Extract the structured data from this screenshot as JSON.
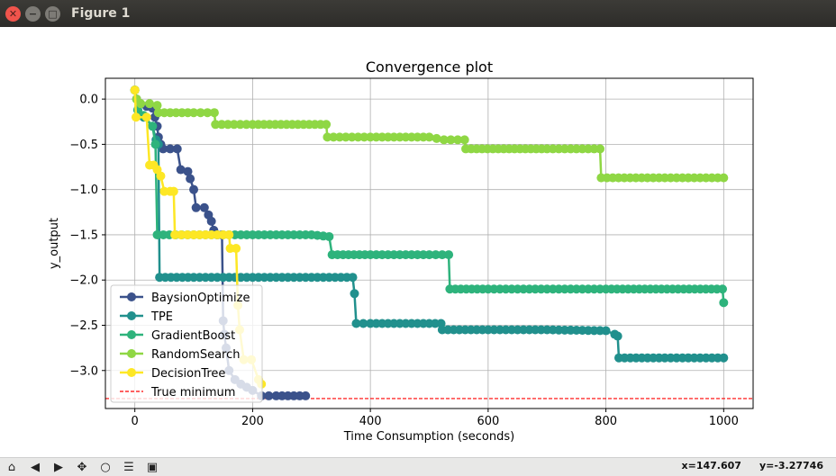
{
  "window": {
    "title": "Figure 1"
  },
  "status": {
    "x": "x=147.607",
    "y": "y=-3.27746"
  },
  "toolbar": {
    "tools": [
      {
        "name": "home-icon",
        "glyph": "⌂"
      },
      {
        "name": "back-icon",
        "glyph": "◀"
      },
      {
        "name": "forward-icon",
        "glyph": "▶"
      },
      {
        "name": "pan-icon",
        "glyph": "✥"
      },
      {
        "name": "zoom-icon",
        "glyph": "○"
      },
      {
        "name": "subplots-icon",
        "glyph": "☰"
      },
      {
        "name": "save-icon",
        "glyph": "▣"
      }
    ]
  },
  "chart_data": {
    "type": "line",
    "title": "Convergence plot",
    "xlabel": "Time Consumption (seconds)",
    "ylabel": "y_output",
    "xlim": [
      -50,
      1050
    ],
    "ylim": [
      -3.42,
      0.23
    ],
    "xticks": [
      0,
      200,
      400,
      600,
      800,
      1000
    ],
    "yticks": [
      0.0,
      -0.5,
      -1.0,
      -1.5,
      -2.0,
      -2.5,
      -3.0
    ],
    "grid": true,
    "legend_position": "lower-left",
    "true_minimum": {
      "label": "True minimum",
      "value": -3.31,
      "color": "#ff0000"
    },
    "series": [
      {
        "name": "BaysionOptimize",
        "color": "#3b528b",
        "points": [
          [
            0,
            0.1
          ],
          [
            3,
            0.0
          ],
          [
            8,
            -0.05
          ],
          [
            20,
            -0.08
          ],
          [
            30,
            -0.1
          ],
          [
            34,
            -0.2
          ],
          [
            38,
            -0.3
          ],
          [
            40,
            -0.42
          ],
          [
            44,
            -0.5
          ],
          [
            48,
            -0.55
          ],
          [
            60,
            -0.55
          ],
          [
            72,
            -0.55
          ],
          [
            78,
            -0.78
          ],
          [
            90,
            -0.8
          ],
          [
            94,
            -0.88
          ],
          [
            100,
            -1.0
          ],
          [
            104,
            -1.2
          ],
          [
            118,
            -1.2
          ],
          [
            125,
            -1.28
          ],
          [
            130,
            -1.35
          ],
          [
            134,
            -1.45
          ],
          [
            140,
            -1.5
          ],
          [
            148,
            -1.5
          ],
          [
            150,
            -2.45
          ],
          [
            152,
            -2.6
          ],
          [
            155,
            -2.75
          ],
          [
            160,
            -3.0
          ],
          [
            170,
            -3.1
          ],
          [
            180,
            -3.15
          ],
          [
            200,
            -3.22
          ],
          [
            215,
            -3.28
          ],
          [
            240,
            -3.28
          ],
          [
            260,
            -3.28
          ],
          [
            290,
            -3.28
          ]
        ]
      },
      {
        "name": "TPE",
        "color": "#21908d",
        "points": [
          [
            0,
            0.1
          ],
          [
            5,
            -0.12
          ],
          [
            15,
            -0.2
          ],
          [
            30,
            -0.3
          ],
          [
            36,
            -0.45
          ],
          [
            40,
            -0.5
          ],
          [
            42,
            -1.97
          ],
          [
            100,
            -1.97
          ],
          [
            200,
            -1.97
          ],
          [
            300,
            -1.97
          ],
          [
            370,
            -1.97
          ],
          [
            373,
            -2.15
          ],
          [
            376,
            -2.48
          ],
          [
            400,
            -2.48
          ],
          [
            470,
            -2.48
          ],
          [
            520,
            -2.48
          ],
          [
            522,
            -2.55
          ],
          [
            600,
            -2.55
          ],
          [
            700,
            -2.55
          ],
          [
            800,
            -2.56
          ],
          [
            815,
            -2.6
          ],
          [
            820,
            -2.62
          ],
          [
            822,
            -2.86
          ],
          [
            900,
            -2.86
          ],
          [
            1000,
            -2.86
          ]
        ]
      },
      {
        "name": "GradientBoost",
        "color": "#2eb37c",
        "points": [
          [
            0,
            0.1
          ],
          [
            5,
            -0.12
          ],
          [
            15,
            -0.18
          ],
          [
            30,
            -0.3
          ],
          [
            35,
            -0.5
          ],
          [
            38,
            -1.5
          ],
          [
            100,
            -1.5
          ],
          [
            200,
            -1.5
          ],
          [
            300,
            -1.5
          ],
          [
            330,
            -1.52
          ],
          [
            335,
            -1.72
          ],
          [
            400,
            -1.72
          ],
          [
            500,
            -1.72
          ],
          [
            533,
            -1.72
          ],
          [
            535,
            -2.1
          ],
          [
            600,
            -2.1
          ],
          [
            700,
            -2.1
          ],
          [
            800,
            -2.1
          ],
          [
            998,
            -2.1
          ],
          [
            1000,
            -2.25
          ]
        ]
      },
      {
        "name": "RandomSearch",
        "color": "#8fd744",
        "points": [
          [
            0,
            0.1
          ],
          [
            3,
            0.0
          ],
          [
            10,
            -0.05
          ],
          [
            25,
            -0.05
          ],
          [
            38,
            -0.07
          ],
          [
            40,
            -0.15
          ],
          [
            100,
            -0.15
          ],
          [
            135,
            -0.15
          ],
          [
            137,
            -0.28
          ],
          [
            200,
            -0.28
          ],
          [
            325,
            -0.28
          ],
          [
            327,
            -0.42
          ],
          [
            400,
            -0.42
          ],
          [
            500,
            -0.42
          ],
          [
            525,
            -0.45
          ],
          [
            560,
            -0.45
          ],
          [
            562,
            -0.55
          ],
          [
            700,
            -0.55
          ],
          [
            790,
            -0.55
          ],
          [
            792,
            -0.87
          ],
          [
            900,
            -0.87
          ],
          [
            1000,
            -0.87
          ]
        ]
      },
      {
        "name": "DecisionTree",
        "color": "#fde725",
        "points": [
          [
            0,
            0.1
          ],
          [
            2,
            -0.2
          ],
          [
            20,
            -0.2
          ],
          [
            25,
            -0.73
          ],
          [
            32,
            -0.73
          ],
          [
            38,
            -0.78
          ],
          [
            44,
            -0.85
          ],
          [
            50,
            -1.02
          ],
          [
            60,
            -1.02
          ],
          [
            66,
            -1.02
          ],
          [
            68,
            -1.5
          ],
          [
            100,
            -1.5
          ],
          [
            150,
            -1.5
          ],
          [
            160,
            -1.5
          ],
          [
            162,
            -1.65
          ],
          [
            172,
            -1.65
          ],
          [
            175,
            -2.28
          ],
          [
            178,
            -2.55
          ],
          [
            185,
            -2.88
          ],
          [
            198,
            -2.88
          ],
          [
            210,
            -3.1
          ],
          [
            215,
            -3.15
          ]
        ]
      }
    ]
  }
}
